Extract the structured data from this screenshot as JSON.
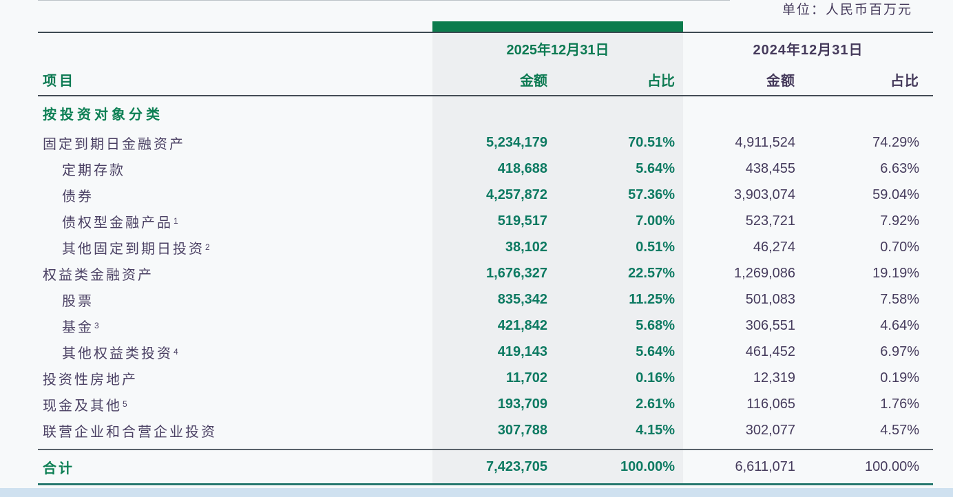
{
  "meta": {
    "unit_label": "单位：人民币百万元"
  },
  "colors": {
    "accent_green": "#0c7c4d",
    "value_green": "#0d7a62",
    "dark_purple": "#463c5d",
    "highlight_column_bg": "#edeff1",
    "bottom_strip_blue": "#cfe1f0",
    "bottom_rule_teal": "#26786e"
  },
  "table": {
    "item_header": "项目",
    "section_header": "按投资对象分类",
    "col_groups": [
      {
        "date": "2025年12月31日",
        "amount_label": "金额",
        "share_label": "占比"
      },
      {
        "date": "2024年12月31日",
        "amount_label": "金额",
        "share_label": "占比"
      }
    ],
    "rows": [
      {
        "label": "固定到期日金融资产",
        "sup": "",
        "indent": false,
        "a2025": "5,234,179",
        "p2025": "70.51%",
        "a2024": "4,911,524",
        "p2024": "74.29%"
      },
      {
        "label": "定期存款",
        "sup": "",
        "indent": true,
        "a2025": "418,688",
        "p2025": "5.64%",
        "a2024": "438,455",
        "p2024": "6.63%"
      },
      {
        "label": "债券",
        "sup": "",
        "indent": true,
        "a2025": "4,257,872",
        "p2025": "57.36%",
        "a2024": "3,903,074",
        "p2024": "59.04%"
      },
      {
        "label": "债权型金融产品",
        "sup": "1",
        "indent": true,
        "a2025": "519,517",
        "p2025": "7.00%",
        "a2024": "523,721",
        "p2024": "7.92%"
      },
      {
        "label": "其他固定到期日投资",
        "sup": "2",
        "indent": true,
        "a2025": "38,102",
        "p2025": "0.51%",
        "a2024": "46,274",
        "p2024": "0.70%"
      },
      {
        "label": "权益类金融资产",
        "sup": "",
        "indent": false,
        "a2025": "1,676,327",
        "p2025": "22.57%",
        "a2024": "1,269,086",
        "p2024": "19.19%"
      },
      {
        "label": "股票",
        "sup": "",
        "indent": true,
        "a2025": "835,342",
        "p2025": "11.25%",
        "a2024": "501,083",
        "p2024": "7.58%"
      },
      {
        "label": "基金",
        "sup": "3",
        "indent": true,
        "a2025": "421,842",
        "p2025": "5.68%",
        "a2024": "306,551",
        "p2024": "4.64%"
      },
      {
        "label": "其他权益类投资",
        "sup": "4",
        "indent": true,
        "a2025": "419,143",
        "p2025": "5.64%",
        "a2024": "461,452",
        "p2024": "6.97%"
      },
      {
        "label": "投资性房地产",
        "sup": "",
        "indent": false,
        "a2025": "11,702",
        "p2025": "0.16%",
        "a2024": "12,319",
        "p2024": "0.19%"
      },
      {
        "label": "现金及其他",
        "sup": "5",
        "indent": false,
        "a2025": "193,709",
        "p2025": "2.61%",
        "a2024": "116,065",
        "p2024": "1.76%"
      },
      {
        "label": "联营企业和合营企业投资",
        "sup": "",
        "indent": false,
        "a2025": "307,788",
        "p2025": "4.15%",
        "a2024": "302,077",
        "p2024": "4.57%"
      }
    ],
    "total": {
      "label": "合计",
      "a2025": "7,423,705",
      "p2025": "100.00%",
      "a2024": "6,611,071",
      "p2024": "100.00%"
    }
  }
}
